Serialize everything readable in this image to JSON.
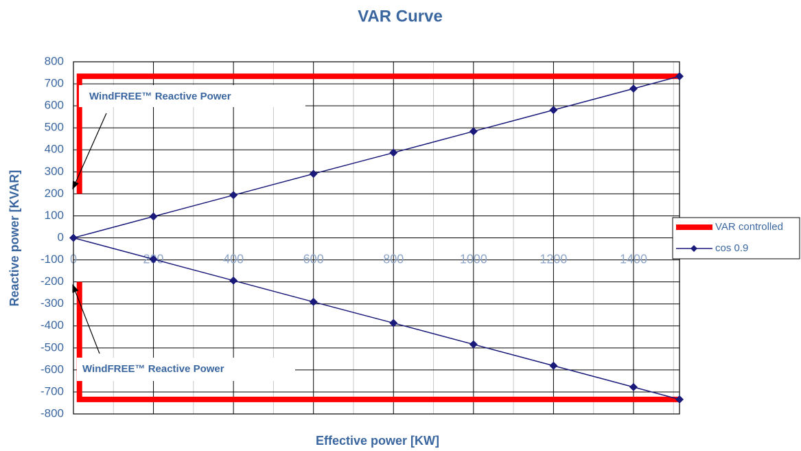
{
  "chart_data": {
    "type": "line",
    "title": "VAR Curve",
    "xlabel": "Effective power [KW]",
    "ylabel": "Reactive power [KVAR]",
    "xlim": [
      0,
      1515
    ],
    "ylim": [
      -800,
      800
    ],
    "xticks": [
      0,
      200,
      400,
      600,
      800,
      1000,
      1200,
      1400
    ],
    "xminorticks": [
      100,
      300,
      500,
      700,
      900,
      1100,
      1300,
      1500
    ],
    "yticks": [
      -800,
      -700,
      -600,
      -500,
      -400,
      -300,
      -200,
      -100,
      0,
      100,
      200,
      300,
      400,
      500,
      600,
      700,
      800
    ],
    "grid": true,
    "legend": "right",
    "series": [
      {
        "name": "VAR controlled",
        "color": "#ff0000",
        "x": [
          15,
          15,
          1515,
          15,
          15,
          15,
          1515
        ],
        "values": [
          200,
          734,
          734,
          null,
          -200,
          -734,
          -734
        ]
      },
      {
        "name": "cos 0.9",
        "color": "#1a1a7a",
        "x": [
          1515,
          1400,
          1200,
          1000,
          800,
          600,
          400,
          200,
          0,
          200,
          400,
          600,
          800,
          1000,
          1200,
          1400,
          1515
        ],
        "values": [
          734,
          678,
          581,
          484,
          387,
          291,
          194,
          97,
          0,
          -97,
          -194,
          -291,
          -387,
          -484,
          -581,
          -678,
          -734
        ]
      }
    ],
    "annotations": [
      "WindFREE™ Reactive Power",
      "WindFREE™ Reactive Power"
    ]
  }
}
